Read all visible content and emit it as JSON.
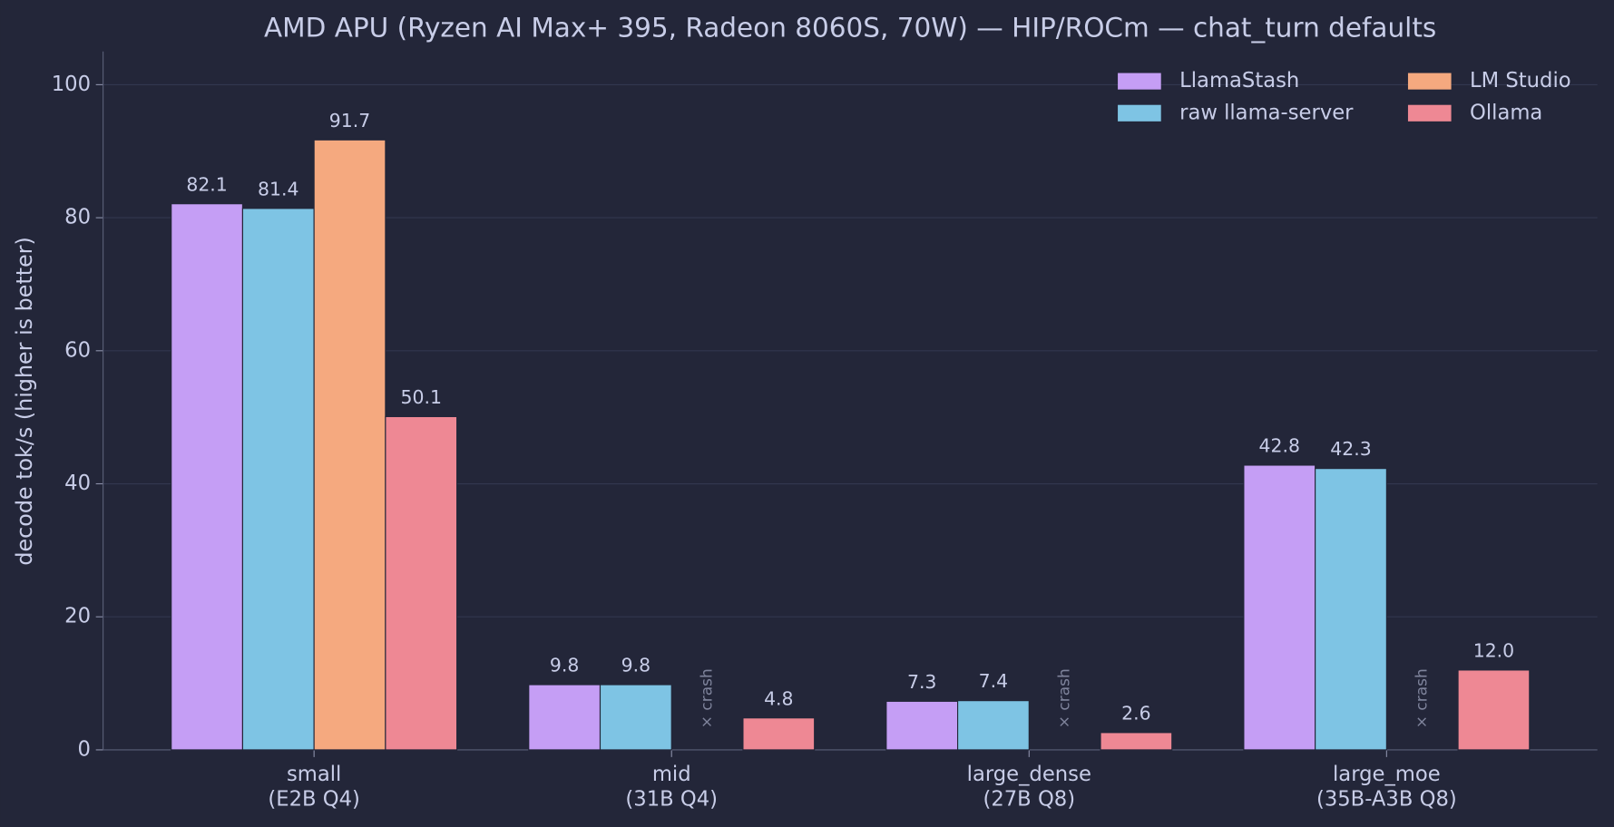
{
  "chart_data": {
    "type": "bar",
    "title": "AMD APU (Ryzen AI Max+ 395, Radeon 8060S, 70W)  —  HIP/ROCm  —  chat_turn defaults",
    "y_label": "decode tok/s  (higher is better)",
    "categories": [
      "small\n(E2B Q4)",
      "mid\n(31B Q4)",
      "large_dense\n(27B Q8)",
      "large_moe\n(35B-A3B Q8)"
    ],
    "series": [
      {
        "name": "LlamaStash",
        "color": "#c59ef5",
        "values": [
          82.1,
          9.8,
          7.3,
          42.8
        ],
        "value_labels": [
          "82.1",
          "9.8",
          "7.3",
          "42.8"
        ]
      },
      {
        "name": "raw llama-server",
        "color": "#7ec4e4",
        "values": [
          81.4,
          9.8,
          7.4,
          42.3
        ],
        "value_labels": [
          "81.4",
          "9.8",
          "7.4",
          "42.3"
        ]
      },
      {
        "name": "LM Studio",
        "color": "#f5a97f",
        "values": [
          91.7,
          null,
          null,
          null
        ],
        "value_labels": [
          "91.7",
          null,
          null,
          null
        ]
      },
      {
        "name": "Ollama",
        "color": "#ee8894",
        "values": [
          50.1,
          4.8,
          2.6,
          12.0
        ],
        "value_labels": [
          "50.1",
          "4.8",
          "2.6",
          "12.0"
        ]
      }
    ],
    "null_label": "× crash",
    "ylim": [
      0,
      105
    ],
    "yticks": [
      0,
      20,
      40,
      60,
      80,
      100
    ],
    "grid": true,
    "legend": "upper right"
  }
}
